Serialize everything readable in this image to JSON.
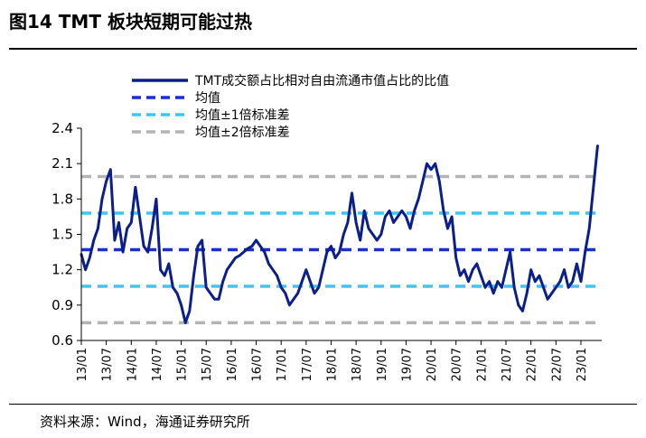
{
  "title": "图14 TMT 板块短期可能过热",
  "source": "资料来源：Wind，海通证券研究所",
  "chart_data": {
    "type": "line",
    "title": "",
    "xlabel": "",
    "ylabel": "",
    "ylim": [
      0.6,
      2.4
    ],
    "yticks": [
      "0.6",
      "0.9",
      "1.2",
      "1.5",
      "1.8",
      "2.1",
      "2.4"
    ],
    "xticks": [
      "13/01",
      "13/07",
      "14/01",
      "14/07",
      "15/01",
      "15/07",
      "16/01",
      "16/07",
      "17/01",
      "17/07",
      "18/01",
      "18/07",
      "19/01",
      "19/07",
      "20/01",
      "20/07",
      "21/01",
      "21/07",
      "22/01",
      "22/07",
      "23/01"
    ],
    "grid": false,
    "legend_position": "top",
    "x_start": "2013-01",
    "x_end": "2023-06",
    "series": [
      {
        "name": "TMT成交额占比相对自由流通市值占比的比值",
        "color": "#0b1f8c",
        "style": "solid",
        "x": [
          "13/01",
          "13/02",
          "13/03",
          "13/04",
          "13/05",
          "13/06",
          "13/07",
          "13/08",
          "13/09",
          "13/10",
          "13/11",
          "13/12",
          "14/01",
          "14/02",
          "14/03",
          "14/04",
          "14/05",
          "14/06",
          "14/07",
          "14/08",
          "14/09",
          "14/10",
          "14/11",
          "14/12",
          "15/01",
          "15/02",
          "15/03",
          "15/04",
          "15/05",
          "15/06",
          "15/07",
          "15/08",
          "15/09",
          "15/10",
          "15/11",
          "15/12",
          "16/01",
          "16/02",
          "16/03",
          "16/04",
          "16/05",
          "16/06",
          "16/07",
          "16/08",
          "16/09",
          "16/10",
          "16/11",
          "16/12",
          "17/01",
          "17/02",
          "17/03",
          "17/04",
          "17/05",
          "17/06",
          "17/07",
          "17/08",
          "17/09",
          "17/10",
          "17/11",
          "17/12",
          "18/01",
          "18/02",
          "18/03",
          "18/04",
          "18/05",
          "18/06",
          "18/07",
          "18/08",
          "18/09",
          "18/10",
          "18/11",
          "18/12",
          "19/01",
          "19/02",
          "19/03",
          "19/04",
          "19/05",
          "19/06",
          "19/07",
          "19/08",
          "19/09",
          "19/10",
          "19/11",
          "19/12",
          "20/01",
          "20/02",
          "20/03",
          "20/04",
          "20/05",
          "20/06",
          "20/07",
          "20/08",
          "20/09",
          "20/10",
          "20/11",
          "20/12",
          "21/01",
          "21/02",
          "21/03",
          "21/04",
          "21/05",
          "21/06",
          "21/07",
          "21/08",
          "21/09",
          "21/10",
          "21/11",
          "21/12",
          "22/01",
          "22/02",
          "22/03",
          "22/04",
          "22/05",
          "22/06",
          "22/07",
          "22/08",
          "22/09",
          "22/10",
          "22/11",
          "22/12",
          "23/01",
          "23/02",
          "23/03",
          "23/04",
          "23/05"
        ],
        "values": [
          1.33,
          1.2,
          1.3,
          1.45,
          1.55,
          1.8,
          1.95,
          2.05,
          1.45,
          1.6,
          1.35,
          1.55,
          1.6,
          1.9,
          1.65,
          1.4,
          1.35,
          1.55,
          1.8,
          1.2,
          1.15,
          1.25,
          1.05,
          1.0,
          0.9,
          0.75,
          0.85,
          1.15,
          1.4,
          1.45,
          1.05,
          1.0,
          0.95,
          0.95,
          1.1,
          1.2,
          1.25,
          1.3,
          1.32,
          1.35,
          1.38,
          1.4,
          1.45,
          1.4,
          1.35,
          1.25,
          1.2,
          1.15,
          1.05,
          1.0,
          0.9,
          0.95,
          1.0,
          1.1,
          1.2,
          1.1,
          1.0,
          1.05,
          1.2,
          1.35,
          1.4,
          1.3,
          1.35,
          1.5,
          1.6,
          1.85,
          1.6,
          1.45,
          1.7,
          1.55,
          1.5,
          1.45,
          1.5,
          1.65,
          1.7,
          1.6,
          1.65,
          1.7,
          1.65,
          1.55,
          1.7,
          1.8,
          1.95,
          2.1,
          2.05,
          2.1,
          1.95,
          1.7,
          1.55,
          1.65,
          1.3,
          1.15,
          1.2,
          1.1,
          1.2,
          1.25,
          1.15,
          1.05,
          1.1,
          1.0,
          1.1,
          1.05,
          1.2,
          1.35,
          1.05,
          0.9,
          0.85,
          1.0,
          1.2,
          1.1,
          1.15,
          1.05,
          0.95,
          1.0,
          1.05,
          1.1,
          1.2,
          1.05,
          1.1,
          1.25,
          1.1,
          1.35,
          1.55,
          1.9,
          2.25
        ]
      },
      {
        "name": "均值",
        "color": "#1a2fd0",
        "style": "dashed",
        "value": 1.37
      },
      {
        "name": "均值±1倍标准差",
        "color": "#3fc6ef",
        "style": "dashed",
        "values": [
          1.06,
          1.68
        ]
      },
      {
        "name": "均值±2倍标准差",
        "color": "#b3b3b3",
        "style": "dashed",
        "values": [
          0.75,
          1.99
        ]
      }
    ]
  }
}
